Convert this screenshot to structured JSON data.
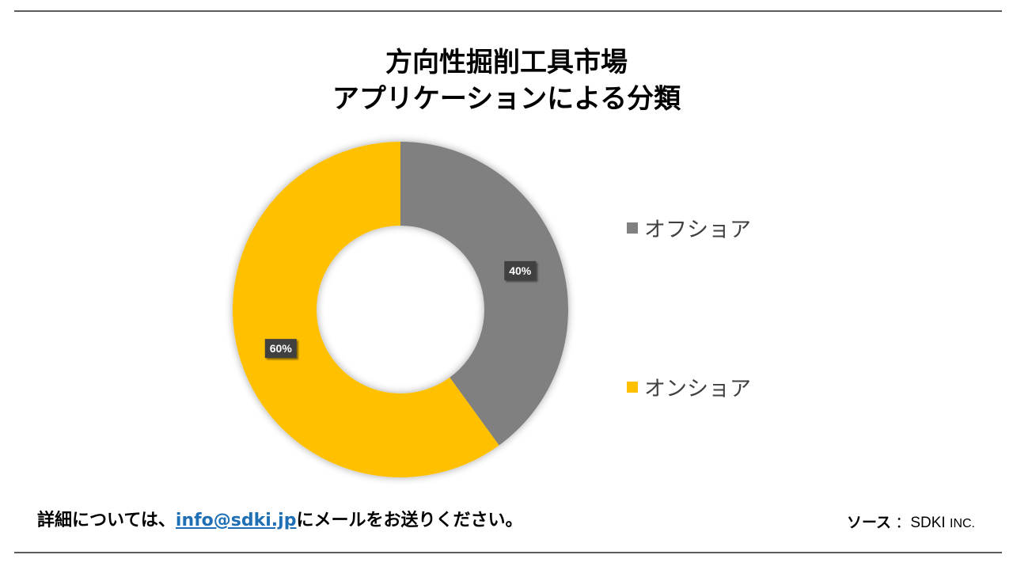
{
  "header": {
    "title_line1": "方向性掘削工具市場",
    "title_line2": "アプリケーションによる分類"
  },
  "chart_data": {
    "type": "pie",
    "donut": true,
    "categories": [
      "オフショア",
      "オンショア"
    ],
    "values": [
      40,
      60
    ],
    "data_labels": [
      "40%",
      "60%"
    ],
    "colors": [
      "#808080",
      "#FFC000"
    ],
    "legend_position": "right"
  },
  "footer": {
    "contact_prefix": "詳細については、",
    "contact_email": "info@sdki.jp",
    "contact_suffix": "にメールをお送りください。",
    "source_label": "ソース",
    "source_sep": "：",
    "source_name": "SDKI",
    "source_suffix": "INC."
  }
}
